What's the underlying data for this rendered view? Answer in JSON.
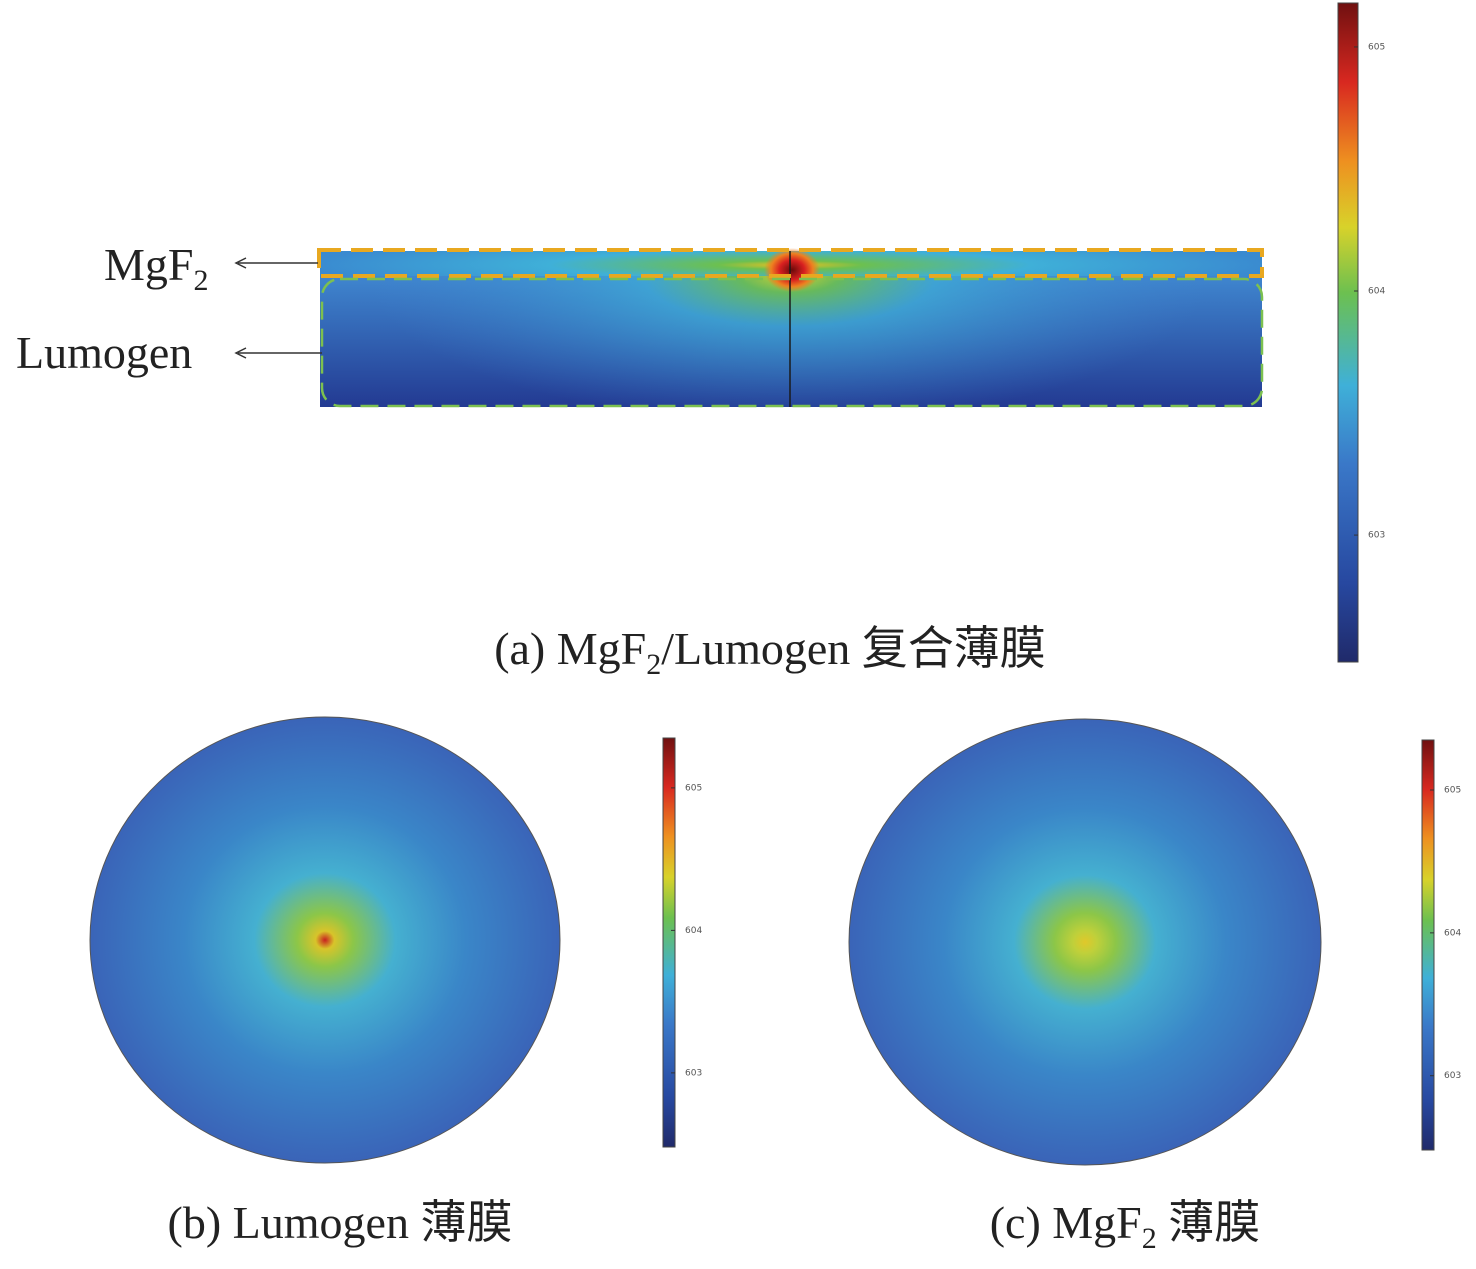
{
  "figure": {
    "panel_a": {
      "mgf2_label": {
        "text": "MgF",
        "sub": "2"
      },
      "lumogen_label": "Lumogen",
      "caption": {
        "prefix": "(a) MgF",
        "sub": "2",
        "suffix": "/Lumogen 复合薄膜"
      },
      "colorbar": {
        "clim": [
          602.48,
          605.18
        ],
        "ticks": [
          603,
          604,
          605
        ]
      }
    },
    "panel_b": {
      "caption": "(b) Lumogen 薄膜",
      "colorbar": {
        "clim": [
          602.48,
          605.35
        ],
        "ticks": [
          603,
          604,
          605
        ]
      }
    },
    "panel_c": {
      "caption": {
        "prefix": "(c) MgF",
        "sub": "2",
        "suffix": " 薄膜"
      },
      "colorbar": {
        "clim": [
          602.48,
          605.35
        ],
        "ticks": [
          603,
          604,
          605
        ]
      }
    }
  }
}
